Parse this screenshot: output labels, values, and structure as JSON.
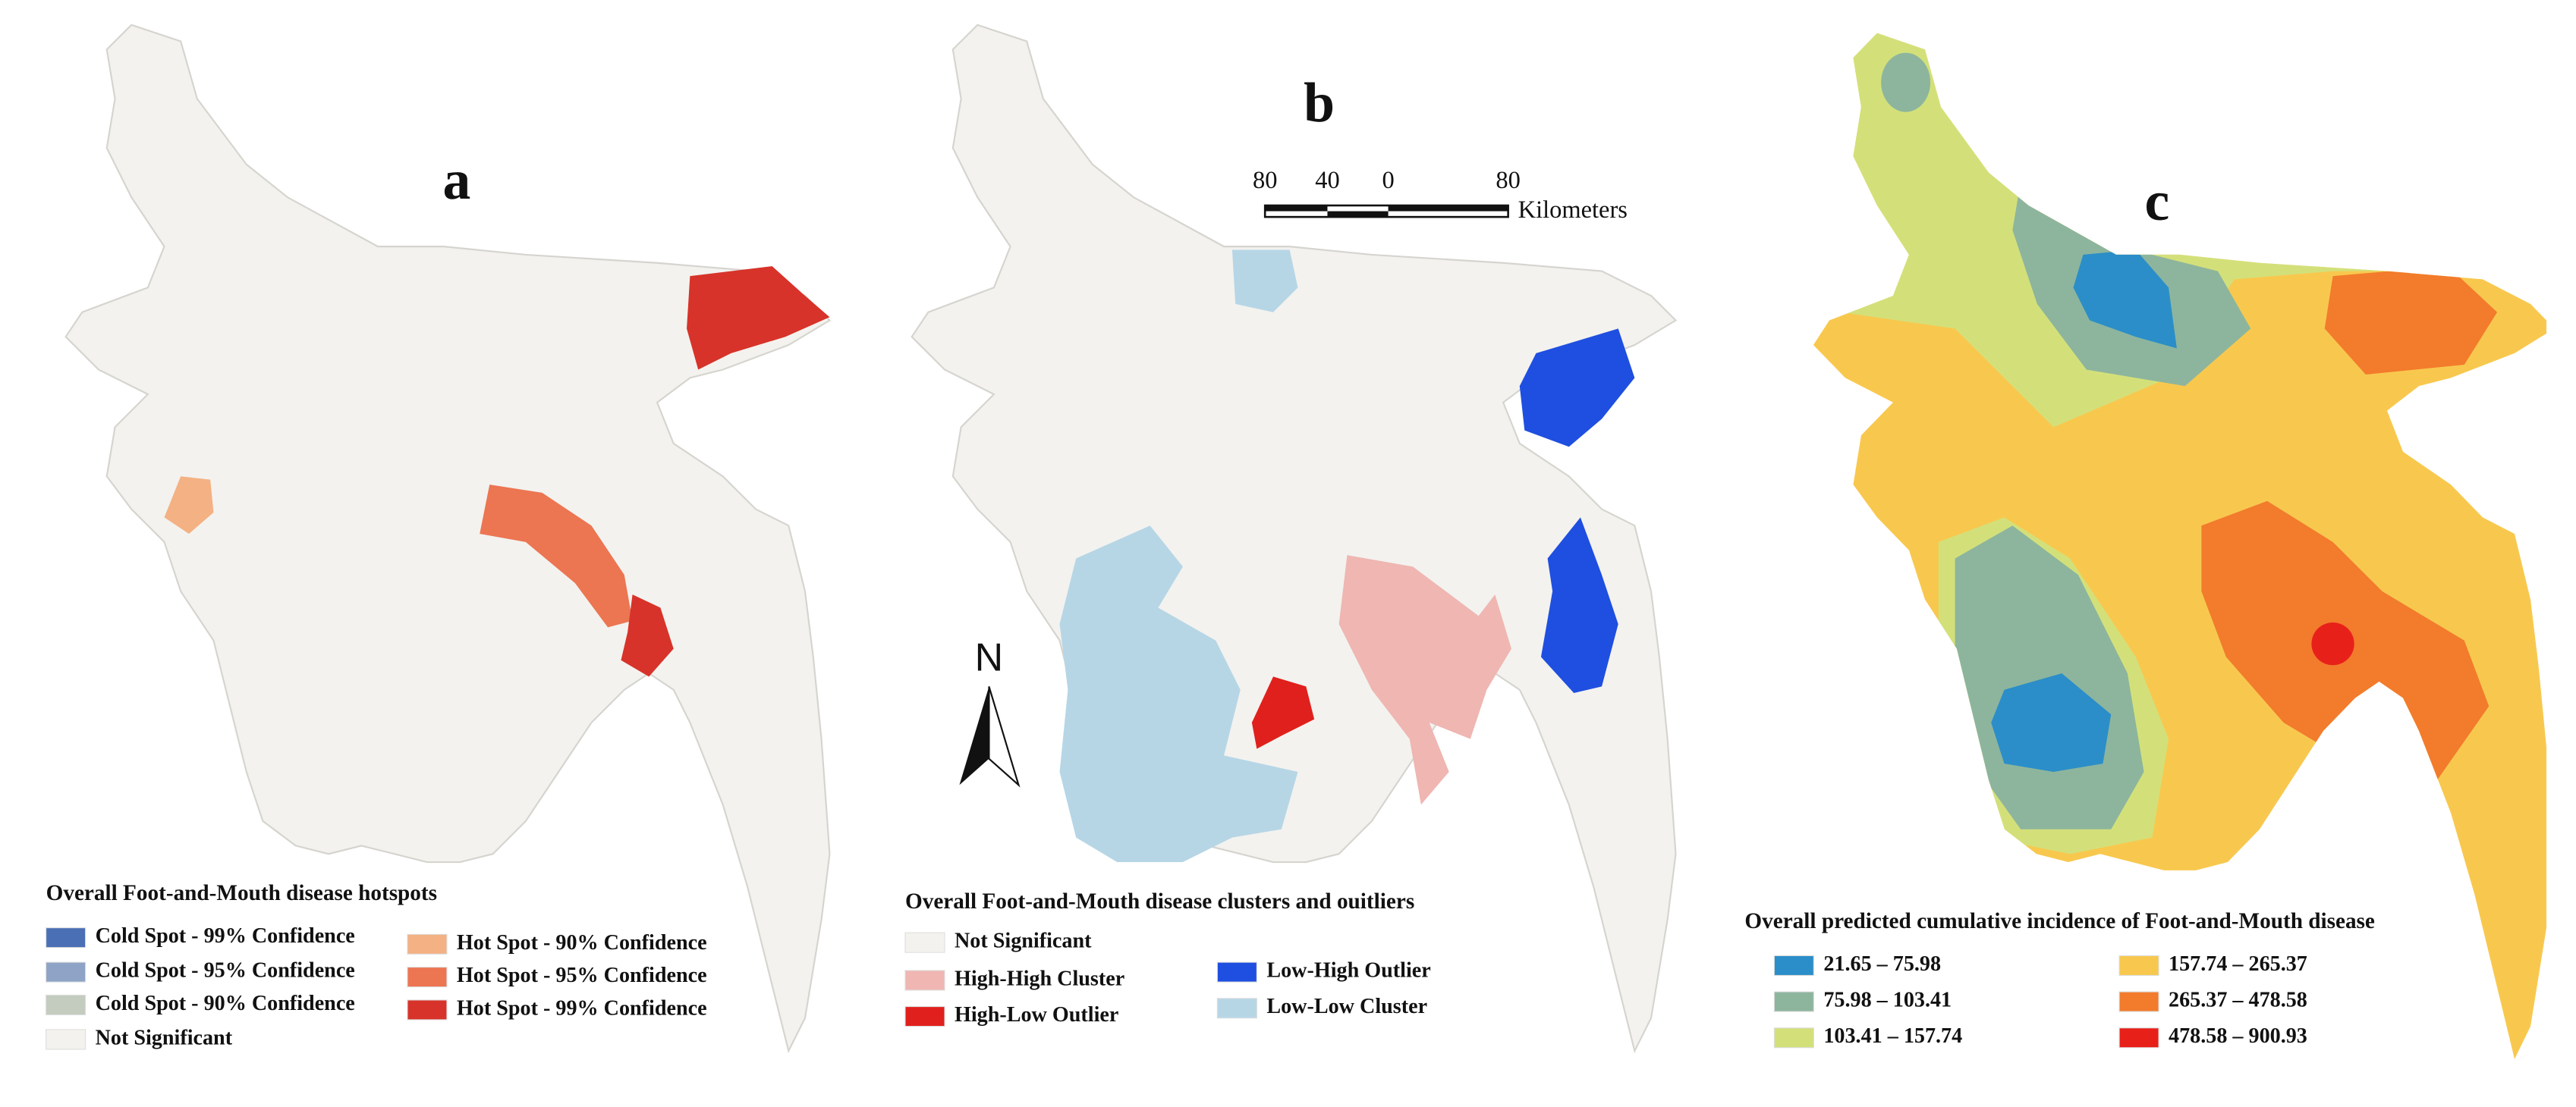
{
  "panels": [
    {
      "label": "a",
      "legend": {
        "title": "Overall Foot-and-Mouth disease hotspots",
        "items": [
          {
            "text": "Cold Spot - 99% Confidence",
            "color": "#4a6fb5"
          },
          {
            "text": "Cold Spot - 95% Confidence",
            "color": "#8ea3c6"
          },
          {
            "text": "Cold Spot - 90% Confidence",
            "color": "#c3ccbf"
          },
          {
            "text": "Not Significant",
            "color": "#f3f2ee"
          },
          {
            "text": "Hot Spot - 90% Confidence",
            "color": "#f4b183"
          },
          {
            "text": "Hot Spot - 95% Confidence",
            "color": "#ec7552"
          },
          {
            "text": "Hot Spot - 99% Confidence",
            "color": "#d7332a"
          }
        ]
      }
    },
    {
      "label": "b",
      "legend": {
        "title": "Overall Foot-and-Mouth disease clusters and ouitliers",
        "items": [
          {
            "text": "Not Significant",
            "color": "#f3f2ee"
          },
          {
            "text": "High-High Cluster",
            "color": "#efb6b2"
          },
          {
            "text": "High-Low Outlier",
            "color": "#e0201c"
          },
          {
            "text": "Low-High Outlier",
            "color": "#1f4fe0"
          },
          {
            "text": "Low-Low Cluster",
            "color": "#b6d6e6"
          }
        ]
      }
    },
    {
      "label": "c",
      "legend": {
        "title": "Overall predicted cumulative incidence of Foot-and-Mouth disease",
        "items": [
          {
            "text": "21.65 – 75.98",
            "color": "#2b8ec8"
          },
          {
            "text": "75.98 – 103.41",
            "color": "#8db59d"
          },
          {
            "text": "103.41 – 157.74",
            "color": "#d3e07a"
          },
          {
            "text": "157.74 – 265.37",
            "color": "#f8c84e"
          },
          {
            "text": "265.37 – 478.58",
            "color": "#f27b2c"
          },
          {
            "text": "478.58 – 900.93",
            "color": "#e8201a"
          }
        ]
      }
    }
  ],
  "scale_bar": {
    "ticks": [
      "80",
      "40",
      "0",
      "80"
    ],
    "unit": "Kilometers"
  },
  "north": "N"
}
